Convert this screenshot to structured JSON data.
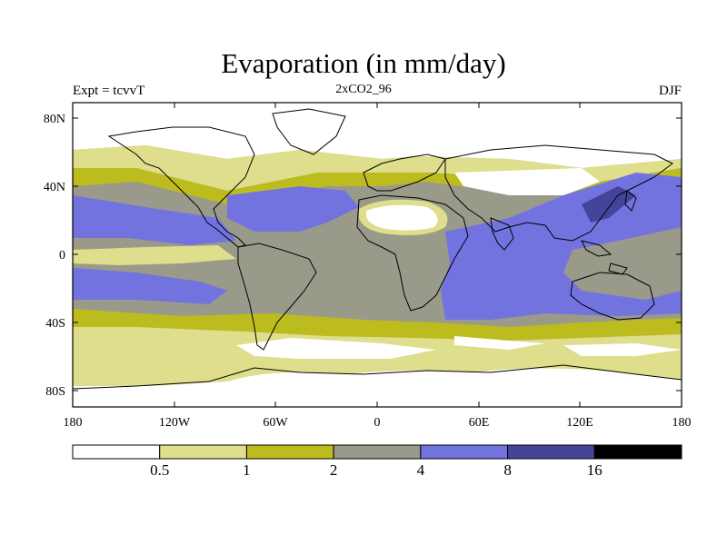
{
  "title": "Evaporation (in mm/day)",
  "subtitle_left": "Expt = tcvvT",
  "subtitle_center": "2xCO2_96",
  "subtitle_right": "DJF",
  "axes": {
    "x_ticks": [
      "180",
      "120W",
      "60W",
      "0",
      "60E",
      "120E",
      "180"
    ],
    "y_ticks": [
      "80N",
      "40N",
      "0",
      "40S",
      "80S"
    ]
  },
  "colorbar": {
    "colors": [
      "#ffffff",
      "#dede8c",
      "#bcbc1e",
      "#9a9a8a",
      "#7373e0",
      "#44449a",
      "#000000"
    ],
    "labels": [
      "0.5",
      "1",
      "2",
      "4",
      "8",
      "16"
    ]
  }
}
